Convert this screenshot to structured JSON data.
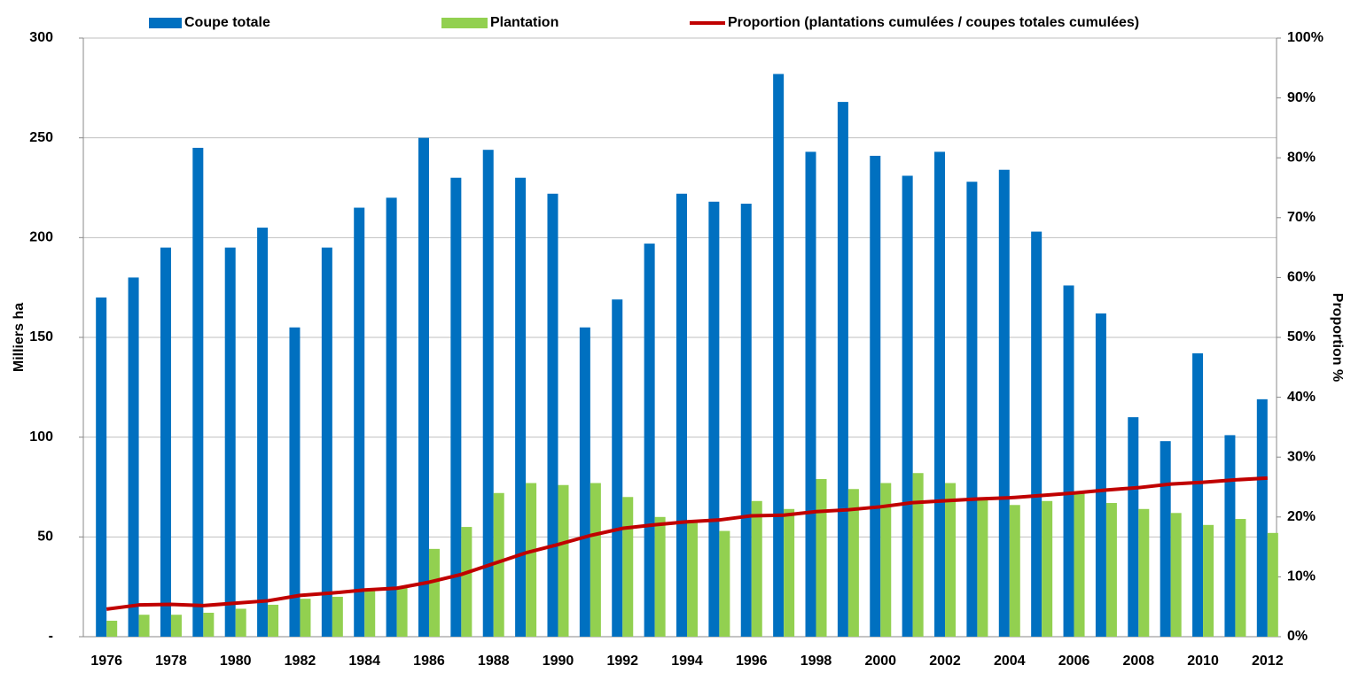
{
  "chart_data": {
    "type": "bar",
    "categories": [
      "1976",
      null,
      "1978",
      null,
      "1980",
      null,
      "1982",
      null,
      "1984",
      null,
      "1986",
      null,
      "1988",
      null,
      "1990",
      null,
      "1992",
      null,
      "1994",
      null,
      "1996",
      null,
      "1998",
      null,
      "2000",
      null,
      "2002",
      null,
      "2004",
      null,
      "2006",
      null,
      "2008",
      null,
      "2010",
      null,
      "2012"
    ],
    "series": [
      {
        "name": "Coupe totale",
        "type": "bar",
        "color": "#0070c0",
        "values": [
          170,
          180,
          195,
          245,
          195,
          205,
          155,
          195,
          215,
          220,
          250,
          230,
          244,
          230,
          222,
          155,
          169,
          197,
          222,
          218,
          217,
          282,
          243,
          268,
          241,
          231,
          243,
          228,
          234,
          203,
          176,
          162,
          110,
          98,
          142,
          101,
          119
        ]
      },
      {
        "name": "Plantation",
        "type": "bar",
        "color": "#92d050",
        "values": [
          8,
          11,
          11,
          12,
          14,
          16,
          19,
          20,
          23,
          25,
          44,
          55,
          72,
          77,
          76,
          77,
          70,
          60,
          57,
          53,
          68,
          64,
          79,
          74,
          77,
          82,
          77,
          69,
          66,
          68,
          72,
          67,
          64,
          62,
          56,
          59,
          52
        ]
      },
      {
        "name": "Proportion (plantations cumulées / coupes totales cumulées)",
        "type": "line",
        "axis": "y2",
        "color": "#c00000",
        "values": [
          4.6,
          5.3,
          5.4,
          5.2,
          5.6,
          6.0,
          6.9,
          7.3,
          7.8,
          8.1,
          9.1,
          10.4,
          12.2,
          14.0,
          15.4,
          16.9,
          18.1,
          18.7,
          19.2,
          19.5,
          20.2,
          20.3,
          20.9,
          21.2,
          21.7,
          22.4,
          22.7,
          23.0,
          23.2,
          23.6,
          24.0,
          24.5,
          24.9,
          25.5,
          25.8,
          26.2,
          26.5
        ]
      }
    ],
    "y_label": "Milliers ha",
    "y2_label": "Proportion %",
    "ylim": [
      0,
      300
    ],
    "yticks": [
      {
        "value": 0,
        "label": "-"
      },
      50,
      100,
      150,
      200,
      250,
      300
    ],
    "y2lim": [
      0,
      100
    ],
    "y2ticks": [
      {
        "value": 0,
        "label": "0%"
      },
      {
        "value": 10,
        "label": "10%"
      },
      {
        "value": 20,
        "label": "20%"
      },
      {
        "value": 30,
        "label": "30%"
      },
      {
        "value": 40,
        "label": "40%"
      },
      {
        "value": 50,
        "label": "50%"
      },
      {
        "value": 60,
        "label": "60%"
      },
      {
        "value": 70,
        "label": "70%"
      },
      {
        "value": 80,
        "label": "80%"
      },
      {
        "value": 90,
        "label": "90%"
      },
      {
        "value": 100,
        "label": "100%"
      }
    ],
    "grid": true,
    "legend": "top"
  }
}
